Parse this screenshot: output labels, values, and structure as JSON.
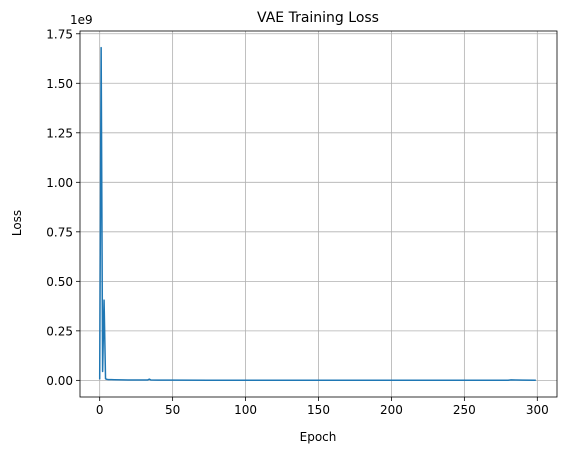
{
  "chart_data": {
    "type": "line",
    "title": "VAE Training Loss",
    "xlabel": "Epoch",
    "ylabel": "Loss",
    "y_offset_label": "1e9",
    "y_scale_factor": 1000000000,
    "xlim": [
      -13.5,
      313.5
    ],
    "ylim": [
      -84000000,
      1764000000
    ],
    "x_ticks": [
      0,
      50,
      100,
      150,
      200,
      250,
      300
    ],
    "x_tick_labels": [
      "0",
      "50",
      "100",
      "150",
      "200",
      "250",
      "300"
    ],
    "y_ticks": [
      0,
      250000000,
      500000000,
      750000000,
      1000000000,
      1250000000,
      1500000000,
      1750000000
    ],
    "y_tick_labels": [
      "0.00",
      "0.25",
      "0.50",
      "0.75",
      "1.00",
      "1.25",
      "1.50",
      "1.75"
    ],
    "grid": true,
    "series": [
      {
        "color": "#1f77b4",
        "x": [
          0,
          1,
          2,
          3,
          4,
          5,
          6,
          8,
          10,
          15,
          20,
          25,
          30,
          33,
          34,
          35,
          40,
          50,
          75,
          100,
          150,
          200,
          250,
          280,
          282,
          285,
          290,
          299
        ],
        "y": [
          5000000,
          1680000000,
          45000000,
          405000000,
          8000000,
          5000000,
          4000000,
          3500000,
          3000000,
          2500000,
          2000000,
          2000000,
          2000000,
          2000000,
          6000000,
          2000000,
          1500000,
          1000000,
          800000,
          700000,
          600000,
          500000,
          500000,
          500000,
          2500000,
          2000000,
          1000000,
          500000
        ]
      }
    ]
  }
}
